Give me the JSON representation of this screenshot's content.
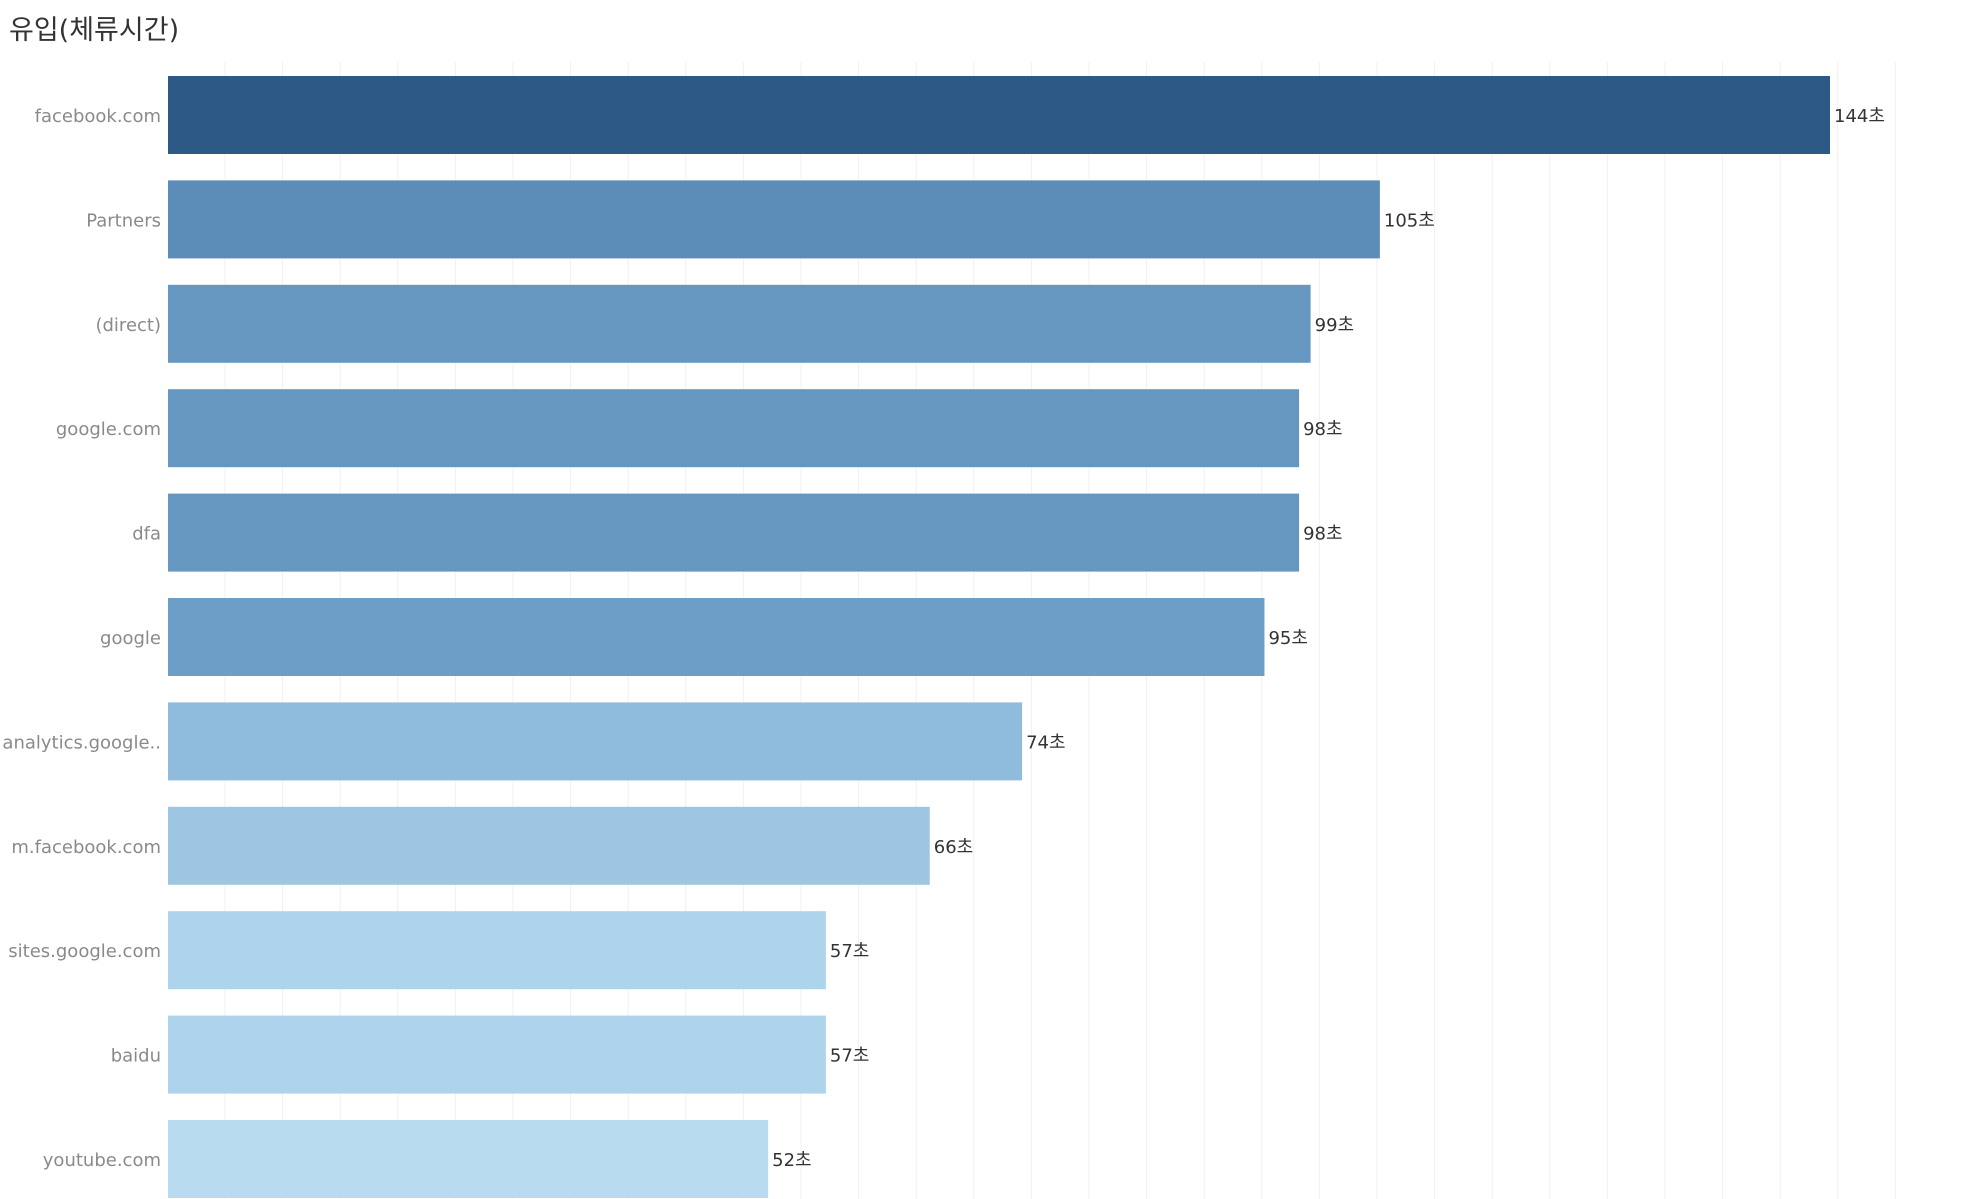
{
  "chart_data": {
    "type": "bar",
    "orientation": "horizontal",
    "title": "유입(체류시간)",
    "categories": [
      "facebook.com",
      "Partners",
      "(direct)",
      "google.com",
      "dfa",
      "google",
      "analytics.google..",
      "m.facebook.com",
      "sites.google.com",
      "baidu",
      "youtube.com"
    ],
    "values": [
      144,
      105,
      99,
      98,
      98,
      95,
      74,
      66,
      57,
      57,
      52
    ],
    "value_labels": [
      "144초",
      "105초",
      "99초",
      "98초",
      "98초",
      "95초",
      "74초",
      "66초",
      "57초",
      "57초",
      "52초"
    ],
    "colors": [
      "#2c5985",
      "#5b8db8",
      "#6697c1",
      "#6697c1",
      "#6697c1",
      "#6d9ec7",
      "#8fbcdd",
      "#9dc6e3",
      "#aed3ec",
      "#aed3ec",
      "#b8dbef"
    ],
    "xlim": [
      0,
      155
    ],
    "grid": true,
    "legend": "none"
  }
}
